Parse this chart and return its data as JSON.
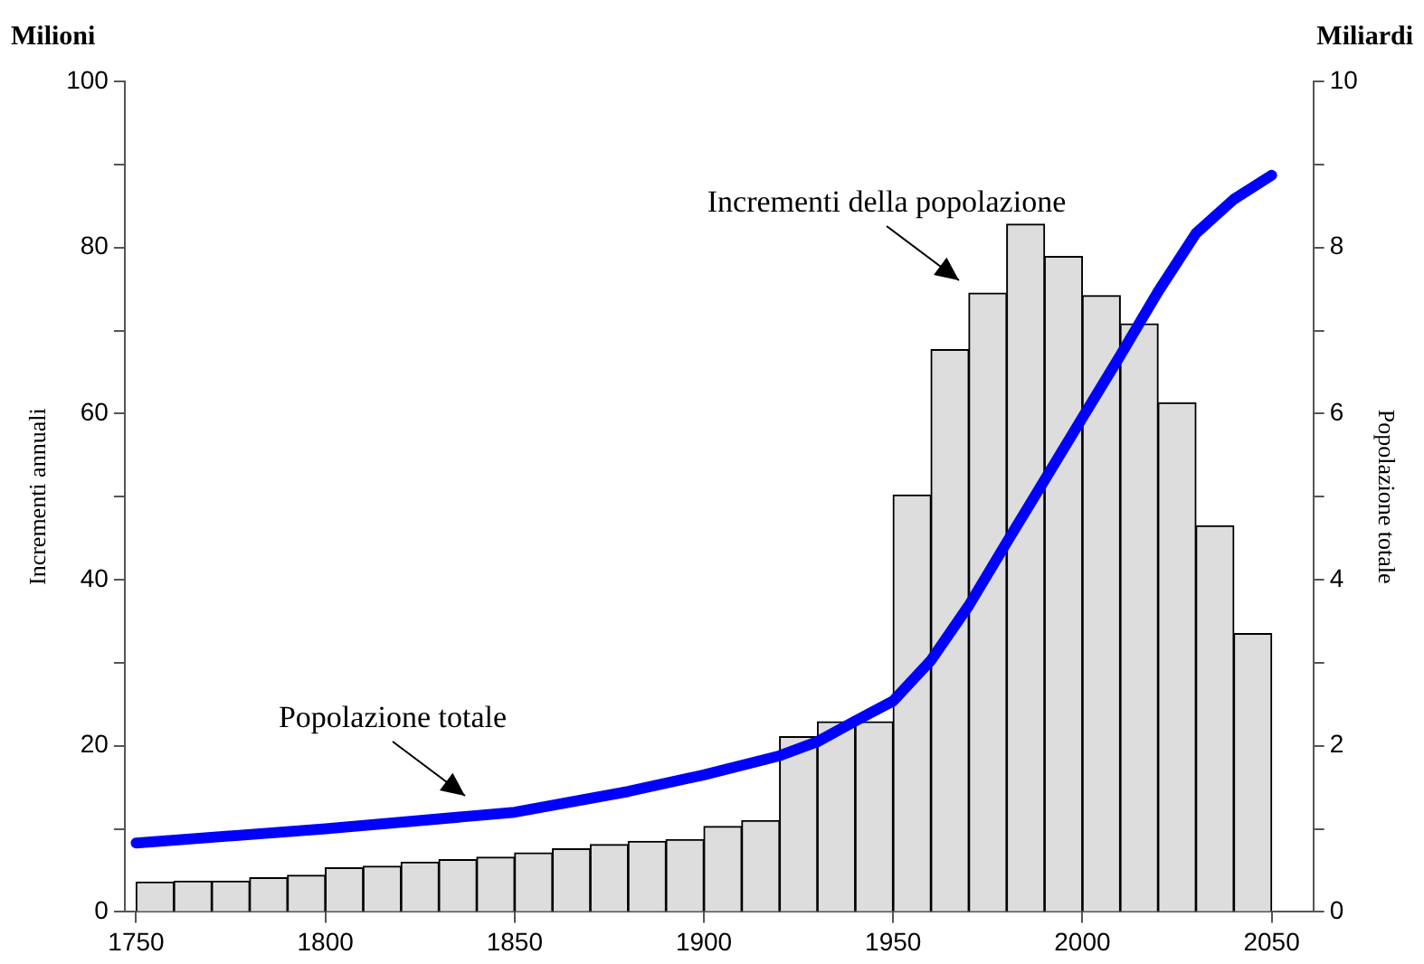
{
  "chart_data": {
    "type": "histogram",
    "xlabel": null,
    "ylabel": "Incrementi annuali",
    "y2label": "Popolazione totale",
    "bins": [
      1750,
      1760,
      1770,
      1780,
      1790,
      1800,
      1810,
      1820,
      1830,
      1840,
      1850,
      1860,
      1870,
      1880,
      1890,
      1900,
      1910,
      1920,
      1930,
      1940,
      1950,
      1960,
      1970,
      1980,
      1990,
      2000,
      2010,
      2020,
      2030,
      2040,
      2050
    ],
    "series": [
      {
        "color": "#dddddd",
        "values": [
          3.6,
          3.7,
          3.7,
          4.1,
          4.4,
          5.3,
          5.5,
          6.0,
          6.3,
          6.6,
          7.1,
          7.6,
          8.1,
          8.5,
          8.7,
          10.3,
          11.0,
          21.1,
          22.9,
          22.9,
          50.2,
          67.7,
          74.5,
          82.8,
          78.9,
          74.2,
          70.8,
          61.3,
          46.5,
          33.5
        ]
      },
      {
        "type": "line",
        "axis": "y2",
        "color": "#0000ff",
        "x": [
          1750,
          1800,
          1850,
          1880,
          1900,
          1920,
          1930,
          1940,
          1950,
          1960,
          1970,
          1980,
          1990,
          2000,
          2010,
          2020,
          2030,
          2040,
          2050
        ],
        "values": [
          0.83,
          1.0,
          1.2,
          1.45,
          1.65,
          1.88,
          2.05,
          2.3,
          2.54,
          3.03,
          3.69,
          4.45,
          5.2,
          5.95,
          6.7,
          7.47,
          8.17,
          8.58,
          8.87
        ]
      }
    ],
    "xlim": [
      1747,
      2061
    ],
    "xticks": [
      1750,
      1800,
      1850,
      1900,
      1950,
      2000,
      2050
    ],
    "ylim": [
      0,
      100
    ],
    "yticks": [
      0,
      {
        "value": 10,
        "label": null
      },
      20,
      {
        "value": 30,
        "label": null
      },
      40,
      {
        "value": 50,
        "label": null
      },
      60,
      {
        "value": 70,
        "label": null
      },
      80,
      {
        "value": 90,
        "label": null
      },
      100
    ],
    "y2lim": [
      0,
      10
    ],
    "y2ticks": [
      0,
      {
        "value": 1,
        "label": null
      },
      2,
      {
        "value": 3,
        "label": null
      },
      4,
      {
        "value": 5,
        "label": null
      },
      6,
      {
        "value": 7,
        "label": null
      },
      8,
      {
        "value": 9,
        "label": null
      },
      10
    ],
    "annotations": [
      "Milioni",
      "Miliardi",
      "Incrementi della popolazione",
      "Popolazione totale"
    ],
    "grid": false,
    "legend": false
  }
}
